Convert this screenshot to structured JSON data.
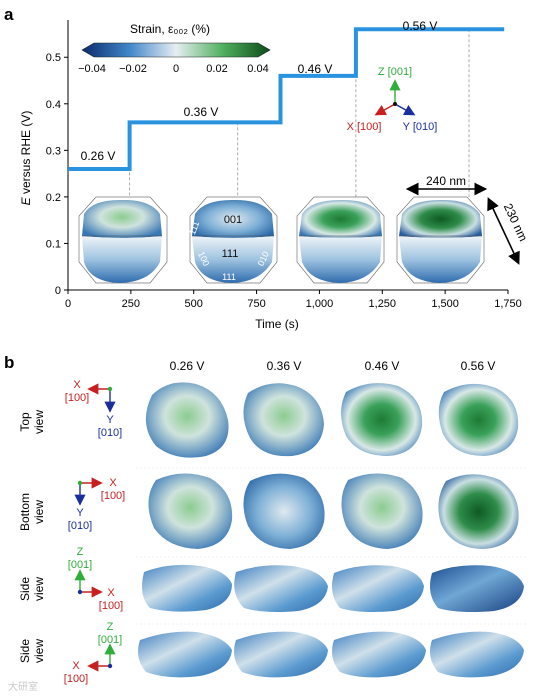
{
  "panel_a": {
    "letter": "a",
    "colorbar": {
      "title": "Strain, ε₀₀₂ (%)",
      "ticks": [
        "−0.04",
        "−0.02",
        "0",
        "0.02",
        "0.04"
      ],
      "colors": [
        "#0b2a6b",
        "#3f86c8",
        "#e6eef2",
        "#4fb05e",
        "#0c4a1a"
      ]
    },
    "axis_x_label": "Time (s)",
    "axis_y_label_italic": "E",
    "axis_y_label_rest": " versus RHE (V)",
    "x_ticks": [
      "0",
      "250",
      "500",
      "750",
      "1,000",
      "1,250",
      "1,500",
      "1,750"
    ],
    "y_ticks": [
      "0",
      "0.1",
      "0.2",
      "0.3",
      "0.4",
      "0.5"
    ],
    "step_labels": [
      "0.26 V",
      "0.36 V",
      "0.46 V",
      "0.56 V"
    ],
    "facet_labels": [
      "001",
      "111",
      "111",
      "100",
      "010",
      "111"
    ],
    "axes_triad": {
      "z": "Z [001]",
      "x": "X [100]",
      "y": "Y [010]"
    },
    "scale_labels": [
      "240 nm",
      "230 nm"
    ],
    "line_color": "#2a93e0"
  },
  "chart_data": {
    "type": "line",
    "xlabel": "Time (s)",
    "ylabel": "E versus RHE (V)",
    "xlim": [
      0,
      1750
    ],
    "ylim": [
      0,
      0.58
    ],
    "series": [
      {
        "x": [
          0,
          245,
          245,
          845,
          845,
          1145,
          1145,
          1735
        ],
        "values": [
          0.26,
          0.26,
          0.36,
          0.36,
          0.46,
          0.46,
          0.56,
          0.56
        ]
      }
    ],
    "particle_times": [
      245,
      675,
      1145,
      1595
    ]
  },
  "panel_b": {
    "letter": "b",
    "column_labels": [
      "0.26 V",
      "0.36 V",
      "0.46 V",
      "0.56 V"
    ],
    "rows": [
      {
        "label": [
          "Top",
          "view"
        ],
        "h": [
          "X",
          "[100]"
        ],
        "v": [
          "Y",
          "[010]"
        ]
      },
      {
        "label": [
          "Bottom",
          "view"
        ],
        "h": [
          "X",
          "[100]"
        ],
        "v": [
          "Y",
          "[010]"
        ]
      },
      {
        "label": [
          "Side",
          "view"
        ],
        "h": [
          "X",
          "[100]"
        ],
        "v": [
          "Z",
          "[001]"
        ]
      },
      {
        "label": [
          "Side",
          "view"
        ],
        "h": [
          "X",
          "[100]"
        ],
        "v": [
          "Z",
          "[001]"
        ]
      }
    ],
    "watermark": "大研室"
  }
}
